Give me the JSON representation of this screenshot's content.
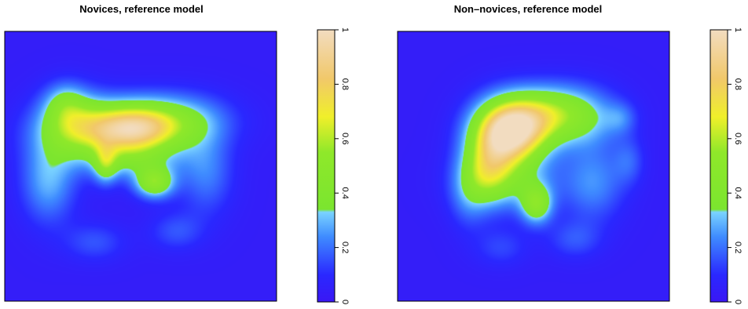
{
  "chart_data": [
    {
      "type": "heatmap",
      "title": "Novices, reference model",
      "xlabel": "",
      "ylabel": "",
      "colorbar": {
        "range": [
          0,
          1
        ],
        "ticks": [
          "0",
          "0.2",
          "0.4",
          "0.6",
          "0.8",
          "1"
        ],
        "stops": [
          {
            "value": 0.0,
            "color": "#3a17f4"
          },
          {
            "value": 0.1,
            "color": "#2a28ff"
          },
          {
            "value": 0.24,
            "color": "#3f8cff"
          },
          {
            "value": 0.33,
            "color": "#7ad3ff"
          },
          {
            "value": 0.34,
            "color": "#7be52f"
          },
          {
            "value": 0.55,
            "color": "#8fe82a"
          },
          {
            "value": 0.68,
            "color": "#f0ef2a"
          },
          {
            "value": 0.82,
            "color": "#f1c86a"
          },
          {
            "value": 1.0,
            "color": "#f2dcc0"
          }
        ]
      },
      "blobs": [
        {
          "cx": 0.47,
          "cy": 0.36,
          "sx": 0.12,
          "sy": 0.06,
          "a": 0.55
        },
        {
          "cx": 0.34,
          "cy": 0.37,
          "sx": 0.15,
          "sy": 0.08,
          "a": 0.35
        },
        {
          "cx": 0.62,
          "cy": 0.33,
          "sx": 0.14,
          "sy": 0.07,
          "a": 0.3
        },
        {
          "cx": 0.24,
          "cy": 0.32,
          "sx": 0.08,
          "sy": 0.08,
          "a": 0.25
        },
        {
          "cx": 0.55,
          "cy": 0.56,
          "sx": 0.05,
          "sy": 0.04,
          "a": 0.45
        },
        {
          "cx": 0.37,
          "cy": 0.49,
          "sx": 0.03,
          "sy": 0.05,
          "a": 0.3
        },
        {
          "cx": 0.16,
          "cy": 0.55,
          "sx": 0.07,
          "sy": 0.11,
          "a": 0.25
        },
        {
          "cx": 0.48,
          "cy": 0.48,
          "sx": 0.12,
          "sy": 0.05,
          "a": 0.2
        },
        {
          "cx": 0.74,
          "cy": 0.52,
          "sx": 0.07,
          "sy": 0.11,
          "a": 0.18
        },
        {
          "cx": 0.63,
          "cy": 0.74,
          "sx": 0.07,
          "sy": 0.05,
          "a": 0.12
        },
        {
          "cx": 0.33,
          "cy": 0.78,
          "sx": 0.08,
          "sy": 0.05,
          "a": 0.12
        },
        {
          "cx": 0.22,
          "cy": 0.26,
          "sx": 0.05,
          "sy": 0.05,
          "a": 0.15
        }
      ]
    },
    {
      "type": "heatmap",
      "title": "Non–novices, reference model",
      "xlabel": "",
      "ylabel": "",
      "colorbar": {
        "range": [
          0,
          1
        ],
        "ticks": [
          "0",
          "0.2",
          "0.4",
          "0.6",
          "0.8",
          "1"
        ],
        "stops": [
          {
            "value": 0.0,
            "color": "#3a17f4"
          },
          {
            "value": 0.1,
            "color": "#2a28ff"
          },
          {
            "value": 0.24,
            "color": "#3f8cff"
          },
          {
            "value": 0.33,
            "color": "#7ad3ff"
          },
          {
            "value": 0.34,
            "color": "#7be52f"
          },
          {
            "value": 0.55,
            "color": "#8fe82a"
          },
          {
            "value": 0.68,
            "color": "#f0ef2a"
          },
          {
            "value": 0.82,
            "color": "#f1c86a"
          },
          {
            "value": 1.0,
            "color": "#f2dcc0"
          }
        ]
      },
      "blobs": [
        {
          "cx": 0.43,
          "cy": 0.36,
          "sx": 0.09,
          "sy": 0.08,
          "a": 0.8
        },
        {
          "cx": 0.36,
          "cy": 0.4,
          "sx": 0.08,
          "sy": 0.09,
          "a": 0.35
        },
        {
          "cx": 0.56,
          "cy": 0.3,
          "sx": 0.1,
          "sy": 0.07,
          "a": 0.35
        },
        {
          "cx": 0.33,
          "cy": 0.52,
          "sx": 0.06,
          "sy": 0.08,
          "a": 0.3
        },
        {
          "cx": 0.51,
          "cy": 0.64,
          "sx": 0.04,
          "sy": 0.05,
          "a": 0.4
        },
        {
          "cx": 0.41,
          "cy": 0.55,
          "sx": 0.12,
          "sy": 0.08,
          "a": 0.25
        },
        {
          "cx": 0.69,
          "cy": 0.32,
          "sx": 0.1,
          "sy": 0.08,
          "a": 0.22
        },
        {
          "cx": 0.72,
          "cy": 0.56,
          "sx": 0.08,
          "sy": 0.1,
          "a": 0.2
        },
        {
          "cx": 0.82,
          "cy": 0.32,
          "sx": 0.04,
          "sy": 0.04,
          "a": 0.12
        },
        {
          "cx": 0.85,
          "cy": 0.48,
          "sx": 0.04,
          "sy": 0.06,
          "a": 0.12
        },
        {
          "cx": 0.26,
          "cy": 0.6,
          "sx": 0.05,
          "sy": 0.09,
          "a": 0.15
        },
        {
          "cx": 0.65,
          "cy": 0.77,
          "sx": 0.07,
          "sy": 0.05,
          "a": 0.12
        },
        {
          "cx": 0.38,
          "cy": 0.8,
          "sx": 0.07,
          "sy": 0.05,
          "a": 0.1
        }
      ]
    }
  ],
  "colors": {
    "background": "#ffffff",
    "plot_background": "#3a17f4",
    "frame": "#000000"
  }
}
